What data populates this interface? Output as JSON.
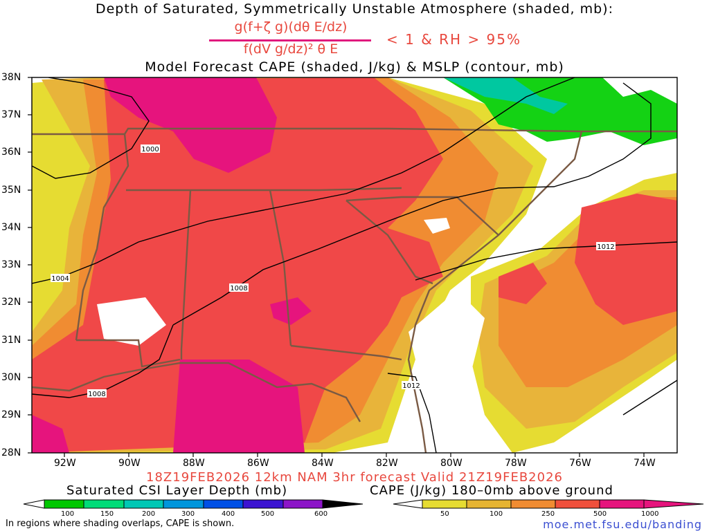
{
  "titles": {
    "line1": "Depth of Saturated, Symmetrically Unstable Atmosphere (shaded, mb):",
    "numerator": "g(f+ζ g)(dθ E/dz)",
    "denominator": "f(dV g/dz)² θ E",
    "condition": "< 1 & RH > 95%",
    "line3": "Model Forecast CAPE (shaded, J/kg) & MSLP (contour, mb)"
  },
  "footer": {
    "run": "18Z19FEB2026 12km NAM 3hr forecast Valid 21Z19FEB2026",
    "note": "In regions where shading overlaps, CAPE is shown.",
    "url": "moe.met.fsu.edu/banding"
  },
  "axes": {
    "lat_ticks": [
      "38N",
      "37N",
      "36N",
      "35N",
      "34N",
      "33N",
      "32N",
      "31N",
      "30N",
      "29N",
      "28N"
    ],
    "lon_ticks": [
      "92W",
      "90W",
      "88W",
      "86W",
      "84W",
      "82W",
      "80W",
      "78W",
      "76W",
      "74W"
    ]
  },
  "isobars": [
    {
      "label": "1000"
    },
    {
      "label": "1004"
    },
    {
      "label": "1008"
    },
    {
      "label": "1008"
    },
    {
      "label": "1012"
    },
    {
      "label": "1012"
    }
  ],
  "colorbars": {
    "csi": {
      "title": "Saturated CSI Layer Depth (mb)",
      "ticks": [
        "100",
        "150",
        "200",
        "300",
        "400",
        "500",
        "600"
      ],
      "colors": [
        "#00c800",
        "#00dc78",
        "#00c8b4",
        "#0096dc",
        "#0050e6",
        "#3c14d2",
        "#8c14c8"
      ]
    },
    "cape": {
      "title": "CAPE (J/kg) 180–0mb above ground",
      "ticks": [
        "50",
        "100",
        "250",
        "500",
        "1000"
      ],
      "colors": [
        "#e6dc32",
        "#e6b432",
        "#f08c32",
        "#f0503c",
        "#e6147d"
      ]
    }
  },
  "shading_colors": {
    "cape_50": "#e6dc32",
    "cape_100": "#e8b43a",
    "cape_250": "#f08c32",
    "cape_500": "#f04848",
    "cape_1000": "#e6147d",
    "csi_100": "#14d214",
    "csi_150": "#00c8a0",
    "borders": "#7a5a44"
  }
}
